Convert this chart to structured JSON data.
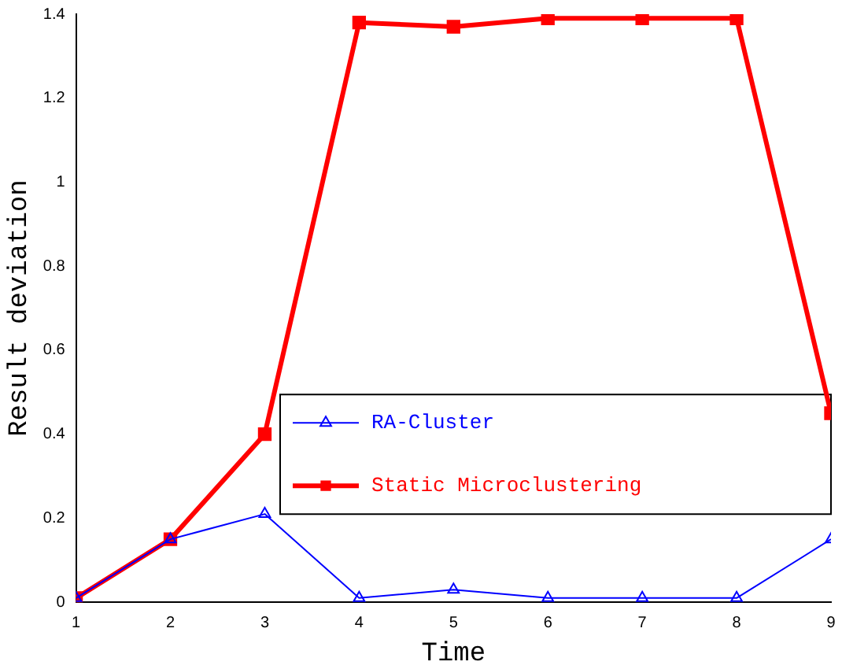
{
  "chart_data": {
    "type": "line",
    "xlabel": "Time",
    "ylabel": "Result deviation",
    "x": [
      1,
      2,
      3,
      4,
      5,
      6,
      7,
      8,
      9
    ],
    "xlim": [
      1,
      9
    ],
    "xticks": [
      1,
      2,
      3,
      4,
      5,
      6,
      7,
      8,
      9
    ],
    "ylim": [
      0,
      1.4
    ],
    "yticks": [
      0,
      0.2,
      0.4,
      0.6,
      0.8,
      1,
      1.2,
      1.4
    ],
    "grid": false,
    "legend": "bottom right",
    "series": [
      {
        "name": "RA-Cluster",
        "color": "#0000ff",
        "marker": "triangle",
        "values": [
          0.01,
          0.15,
          0.21,
          0.01,
          0.03,
          0.01,
          0.01,
          0.01,
          0.15
        ]
      },
      {
        "name": "Static Microclustering",
        "color": "#ff0000",
        "marker": "square",
        "values": [
          0.01,
          0.15,
          0.4,
          1.38,
          1.37,
          1.39,
          1.39,
          1.39,
          0.45
        ]
      }
    ]
  }
}
